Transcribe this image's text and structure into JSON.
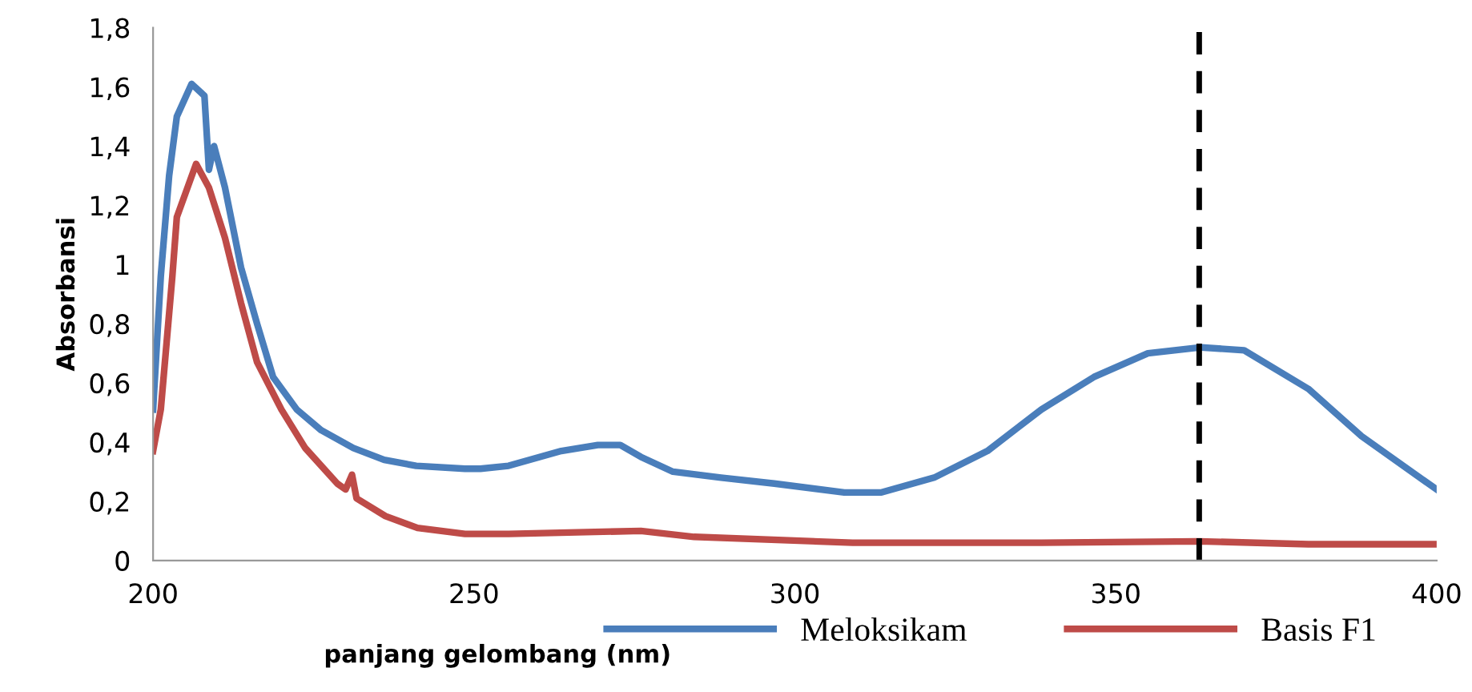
{
  "chart_data": {
    "type": "line",
    "xlabel": "panjang gelombang (nm)",
    "ylabel": "Absorbansi",
    "xlim": [
      200,
      400
    ],
    "xticks": [
      200,
      250,
      300,
      350,
      400
    ],
    "ylim": [
      0,
      1.8
    ],
    "yticks": [
      0,
      {
        "value": 0.2,
        "label": "0,2"
      },
      {
        "value": 0.4,
        "label": "0,4"
      },
      {
        "value": 0.6,
        "label": "0,6"
      },
      {
        "value": 0.8,
        "label": "0,8"
      },
      1,
      {
        "value": 1.2,
        "label": "1,2"
      },
      {
        "value": 1.4,
        "label": "1,4"
      },
      {
        "value": 1.6,
        "label": "1,6"
      },
      {
        "value": 1.8,
        "label": "1,8"
      }
    ],
    "grid": false,
    "legend": "bottom",
    "marker": "none",
    "line_style": "solid",
    "series": [
      {
        "name": "Meloksikam",
        "color": "#4a7ebb",
        "x": [
          200,
          201.2,
          202.5,
          203.7,
          206,
          208,
          208.7,
          209.5,
          211.2,
          213.7,
          216.2,
          218.7,
          222.4,
          226.2,
          231.2,
          236,
          241,
          248.6,
          251,
          255.4,
          263.6,
          269.3,
          272.8,
          276,
          281,
          288.5,
          296.8,
          307.7,
          313.5,
          321.7,
          330,
          338.4,
          346.6,
          355,
          363.3,
          370,
          380,
          388.3,
          400
        ],
        "values": [
          0.51,
          0.96,
          1.3,
          1.5,
          1.61,
          1.57,
          1.32,
          1.4,
          1.26,
          0.99,
          0.8,
          0.62,
          0.51,
          0.44,
          0.38,
          0.34,
          0.32,
          0.31,
          0.31,
          0.32,
          0.37,
          0.39,
          0.39,
          0.35,
          0.3,
          0.28,
          0.26,
          0.23,
          0.23,
          0.28,
          0.37,
          0.51,
          0.62,
          0.7,
          0.72,
          0.71,
          0.58,
          0.42,
          0.24
        ]
      },
      {
        "name": "Basis F1",
        "color": "#be4b48",
        "x": [
          200,
          201.2,
          203,
          203.7,
          206.7,
          208.7,
          211.2,
          213.7,
          216.2,
          220,
          223.7,
          228.7,
          230,
          231,
          231.7,
          236.2,
          241.2,
          248.6,
          255.4,
          276,
          284.3,
          309,
          338.4,
          363,
          380,
          400
        ],
        "values": [
          0.37,
          0.51,
          0.96,
          1.16,
          1.34,
          1.26,
          1.09,
          0.87,
          0.67,
          0.51,
          0.38,
          0.26,
          0.24,
          0.29,
          0.21,
          0.15,
          0.11,
          0.09,
          0.09,
          0.1,
          0.08,
          0.06,
          0.06,
          0.065,
          0.055,
          0.055
        ]
      }
    ],
    "ref_lines": [
      {
        "axis": "x",
        "value": 363,
        "color": "#000000",
        "line_style": "dashed"
      }
    ]
  }
}
